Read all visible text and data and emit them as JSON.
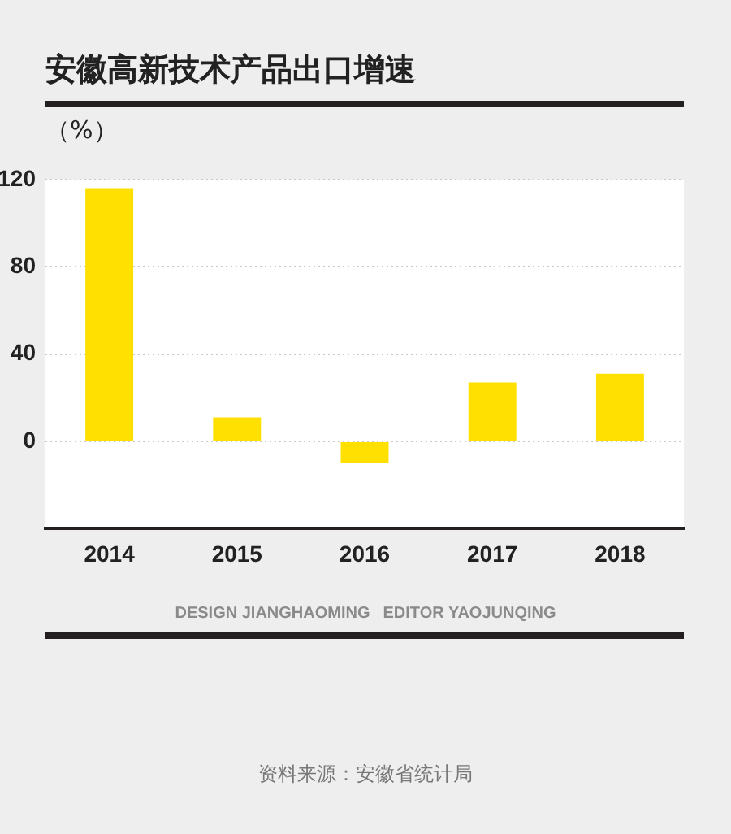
{
  "chart_data": {
    "type": "bar",
    "title": "安徽高新技术产品出口增速",
    "ylabel": "（%）",
    "categories": [
      "2014",
      "2015",
      "2016",
      "2017",
      "2018"
    ],
    "values": [
      116,
      11,
      -10,
      27,
      31
    ],
    "color": "#ffe000",
    "ylim": [
      -40,
      120
    ],
    "yticks": [
      0,
      40,
      80,
      120
    ],
    "grid": "y",
    "annotations": [
      "DESIGN JIANGHAOMING",
      "EDITOR YAOJUNQING",
      "资料来源：安徽省统计局"
    ]
  }
}
